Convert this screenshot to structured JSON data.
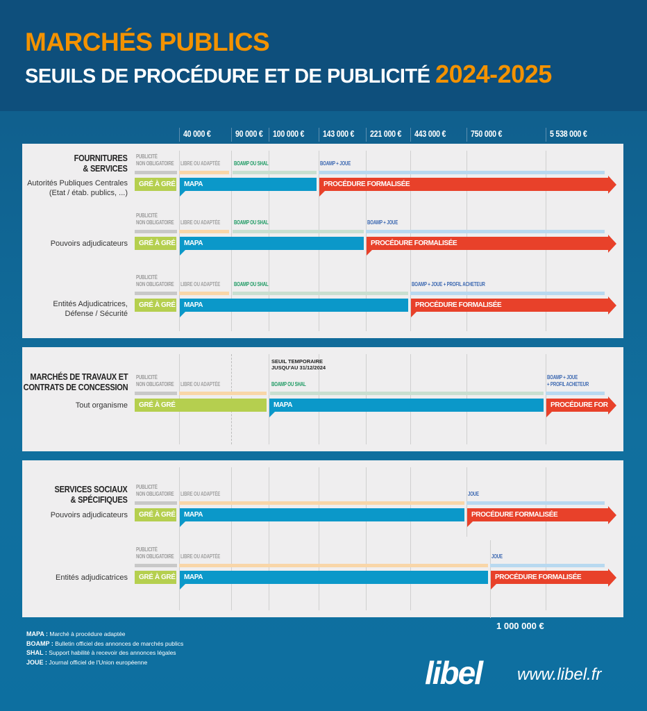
{
  "header": {
    "title": "MARCHÉS PUBLICS",
    "subtitle": "SEUILS DE PROCÉDURE ET DE PUBLICITÉ",
    "years": "2024-2025"
  },
  "thresholds": [
    {
      "value": 40000,
      "label": "40 000 €"
    },
    {
      "value": 90000,
      "label": "90 000 €"
    },
    {
      "value": 100000,
      "label": "100 000 €"
    },
    {
      "value": 143000,
      "label": "143 000 €"
    },
    {
      "value": 221000,
      "label": "221 000 €"
    },
    {
      "value": 443000,
      "label": "443 000 €"
    },
    {
      "value": 750000,
      "label": "750 000 €"
    },
    {
      "value": 5538000,
      "label": "5 538 000 €"
    }
  ],
  "extra_threshold": {
    "value": 1000000,
    "label": "1 000 000 €"
  },
  "colors": {
    "gre": "#b5cf4f",
    "mapa": "#0b98c9",
    "formalisee": "#e8412a",
    "pub_none": "#c8c8c8",
    "pub_libre": "#f9d6a8",
    "pub_boamp_shal": "#c9dfd0",
    "pub_boamp_joue": "#b8d9f0",
    "title_orange": "#f39200"
  },
  "panels": [
    {
      "title": [
        "FOURNITURES",
        "& SERVICES"
      ],
      "rows": [
        {
          "label": [
            "Autorités Publiques Centrales",
            "(Etat / étab. publics, ...)"
          ],
          "publicity": [
            {
              "kind": "none",
              "label": [
                "PUBLICITÉ",
                "NON OBLIGATOIRE"
              ],
              "from": 0,
              "to": 40000
            },
            {
              "kind": "libre",
              "label": [
                "LIBRE OU ADAPTÉE"
              ],
              "from": 40000,
              "to": 90000
            },
            {
              "kind": "boamp_shal",
              "label": [
                "BOAMP OU SHAL"
              ],
              "from": 90000,
              "to": 143000
            },
            {
              "kind": "boamp_joue",
              "label": [
                "BOAMP + JOUE"
              ],
              "from": 143000,
              "to": "max"
            }
          ],
          "procedures": [
            {
              "kind": "gre",
              "label": "GRÉ À GRÉ",
              "from": 0,
              "to": 40000
            },
            {
              "kind": "mapa",
              "label": "MAPA",
              "from": 40000,
              "to": 143000
            },
            {
              "kind": "formalisee",
              "label": "PROCÉDURE FORMALISÉE",
              "from": 143000,
              "to": "max"
            }
          ]
        },
        {
          "label": [
            "Pouvoirs adjudicateurs"
          ],
          "publicity": [
            {
              "kind": "none",
              "label": [
                "PUBLICITÉ",
                "NON OBLIGATOIRE"
              ],
              "from": 0,
              "to": 40000
            },
            {
              "kind": "libre",
              "label": [
                "LIBRE OU ADAPTÉE"
              ],
              "from": 40000,
              "to": 90000
            },
            {
              "kind": "boamp_shal",
              "label": [
                "BOAMP OU SHAL"
              ],
              "from": 90000,
              "to": 221000
            },
            {
              "kind": "boamp_joue",
              "label": [
                "BOAMP + JOUE"
              ],
              "from": 221000,
              "to": "max"
            }
          ],
          "procedures": [
            {
              "kind": "gre",
              "label": "GRÉ À GRÉ",
              "from": 0,
              "to": 40000
            },
            {
              "kind": "mapa",
              "label": "MAPA",
              "from": 40000,
              "to": 221000
            },
            {
              "kind": "formalisee",
              "label": "PROCÉDURE FORMALISÉE",
              "from": 221000,
              "to": "max"
            }
          ]
        },
        {
          "label": [
            "Entités Adjudicatrices,",
            "Défense / Sécurité"
          ],
          "publicity": [
            {
              "kind": "none",
              "label": [
                "PUBLICITÉ",
                "NON OBLIGATOIRE"
              ],
              "from": 0,
              "to": 40000
            },
            {
              "kind": "libre",
              "label": [
                "LIBRE OU ADAPTÉE"
              ],
              "from": 40000,
              "to": 90000
            },
            {
              "kind": "boamp_shal",
              "label": [
                "BOAMP OU SHAL"
              ],
              "from": 90000,
              "to": 443000
            },
            {
              "kind": "boamp_joue",
              "label": [
                "BOAMP + JOUE + PROFIL ACHETEUR"
              ],
              "from": 443000,
              "to": "max"
            }
          ],
          "procedures": [
            {
              "kind": "gre",
              "label": "GRÉ À GRÉ",
              "from": 0,
              "to": 40000
            },
            {
              "kind": "mapa",
              "label": "MAPA",
              "from": 40000,
              "to": 443000
            },
            {
              "kind": "formalisee",
              "label": "PROCÉDURE FORMALISÉE",
              "from": 443000,
              "to": "max"
            }
          ]
        }
      ]
    },
    {
      "title": [
        "MARCHÉS DE TRAVAUX ET",
        "CONTRATS DE CONCESSION"
      ],
      "annotation": [
        "SEUIL TEMPORAIRE",
        "JUSQU'AU 31/12/2024"
      ],
      "rows": [
        {
          "label": [
            "Tout organisme"
          ],
          "publicity": [
            {
              "kind": "none",
              "label": [
                "PUBLICITÉ",
                "NON OBLIGATOIRE"
              ],
              "from": 0,
              "to": 40000
            },
            {
              "kind": "libre",
              "label": [
                "LIBRE OU ADAPTÉE"
              ],
              "from": 40000,
              "to": 100000
            },
            {
              "kind": "boamp_shal",
              "label": [
                "BOAMP OU SHAL"
              ],
              "from": 100000,
              "to": 5538000
            },
            {
              "kind": "boamp_joue",
              "label": [
                "BOAMP + JOUE",
                "+ PROFIL ACHETEUR"
              ],
              "from": 5538000,
              "to": "max"
            }
          ],
          "procedures": [
            {
              "kind": "gre",
              "label": "GRÉ À GRÉ",
              "from": 0,
              "to": 100000
            },
            {
              "kind": "mapa",
              "label": "MAPA",
              "from": 100000,
              "to": 5538000
            },
            {
              "kind": "formalisee",
              "label": "PROCÉDURE FORM.",
              "from": 5538000,
              "to": "max"
            }
          ]
        }
      ]
    },
    {
      "title": [
        "SERVICES SOCIAUX",
        "& SPÉCIFIQUES"
      ],
      "rows": [
        {
          "label": [
            "Pouvoirs adjudicateurs"
          ],
          "publicity": [
            {
              "kind": "none",
              "label": [
                "PUBLICITÉ",
                "NON OBLIGATOIRE"
              ],
              "from": 0,
              "to": 40000
            },
            {
              "kind": "libre",
              "label": [
                "LIBRE OU ADAPTÉE"
              ],
              "from": 40000,
              "to": 750000
            },
            {
              "kind": "boamp_joue",
              "label": [
                "JOUE"
              ],
              "from": 750000,
              "to": "max"
            }
          ],
          "procedures": [
            {
              "kind": "gre",
              "label": "GRÉ À GRÉ",
              "from": 0,
              "to": 40000
            },
            {
              "kind": "mapa",
              "label": "MAPA",
              "from": 40000,
              "to": 750000
            },
            {
              "kind": "formalisee",
              "label": "PROCÉDURE FORMALISÉE",
              "from": 750000,
              "to": "max"
            }
          ]
        },
        {
          "label": [
            "Entités adjudicatrices"
          ],
          "publicity": [
            {
              "kind": "none",
              "label": [
                "PUBLICITÉ",
                "NON OBLIGATOIRE"
              ],
              "from": 0,
              "to": 40000
            },
            {
              "kind": "libre",
              "label": [
                "LIBRE OU ADAPTÉE"
              ],
              "from": 40000,
              "to": 1000000
            },
            {
              "kind": "boamp_joue",
              "label": [
                "JOUE"
              ],
              "from": 1000000,
              "to": "max"
            }
          ],
          "procedures": [
            {
              "kind": "gre",
              "label": "GRÉ À GRÉ",
              "from": 0,
              "to": 40000
            },
            {
              "kind": "mapa",
              "label": "MAPA",
              "from": 40000,
              "to": 1000000
            },
            {
              "kind": "formalisee",
              "label": "PROCÉDURE FORMALISÉE",
              "from": 1000000,
              "to": "max"
            }
          ]
        }
      ]
    }
  ],
  "legend": [
    {
      "abbr": "MAPA :",
      "text": "Marché à procédure adaptée"
    },
    {
      "abbr": "BOAMP :",
      "text": "Bulletin officiel des annonces de marchés publics"
    },
    {
      "abbr": "SHAL :",
      "text": "Support habilité à recevoir des annonces légales"
    },
    {
      "abbr": "JOUE :",
      "text": "Journal officiel de l'Union européenne"
    }
  ],
  "brand": {
    "logo": "libel",
    "url": "www.libel.fr"
  }
}
